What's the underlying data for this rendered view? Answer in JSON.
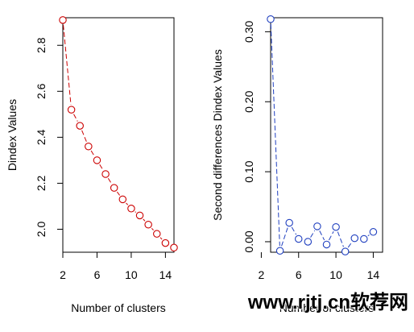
{
  "chart_data": [
    {
      "type": "scatter",
      "title": "",
      "xlabel": "Number of clusters",
      "ylabel": "Dindex Values",
      "xlim": [
        2,
        15
      ],
      "ylim": [
        1.9,
        2.92
      ],
      "x_ticks": [
        2,
        6,
        10,
        14
      ],
      "y_ticks": [
        2.0,
        2.2,
        2.4,
        2.6,
        2.8
      ],
      "x_tick_labels": [
        "2",
        "6",
        "10",
        "14"
      ],
      "y_tick_labels": [
        "2.0",
        "2.2",
        "2.4",
        "2.6",
        "2.8"
      ],
      "grid": false,
      "color": "#cc0000",
      "line_style": "dashed",
      "x": [
        2,
        3,
        4,
        5,
        6,
        7,
        8,
        9,
        10,
        11,
        12,
        13,
        14,
        15
      ],
      "y": [
        2.91,
        2.52,
        2.45,
        2.36,
        2.3,
        2.24,
        2.18,
        2.13,
        2.09,
        2.06,
        2.02,
        1.98,
        1.94,
        1.92
      ]
    },
    {
      "type": "scatter",
      "title": "",
      "xlabel": "Number of clusters",
      "ylabel": "Second differences Dindex Values",
      "xlim": [
        3,
        15
      ],
      "ylim": [
        -0.015,
        0.32
      ],
      "x_ticks": [
        2,
        6,
        10,
        14
      ],
      "y_ticks": [
        0.0,
        0.1,
        0.2,
        0.3
      ],
      "x_tick_labels": [
        "2",
        "6",
        "10",
        "14"
      ],
      "y_tick_labels": [
        "0.00",
        "0.10",
        "0.20",
        "0.30"
      ],
      "grid": false,
      "color": "#1f3fbf",
      "line_style": "dashed",
      "x": [
        3,
        4,
        5,
        6,
        7,
        8,
        9,
        10,
        11,
        12,
        13,
        14
      ],
      "y": [
        0.318,
        -0.013,
        0.027,
        0.004,
        0.0,
        0.022,
        -0.004,
        0.021,
        -0.014,
        0.005,
        0.004,
        0.014
      ]
    }
  ],
  "watermark": {
    "text": "www.rjtj.cn软荐网"
  }
}
